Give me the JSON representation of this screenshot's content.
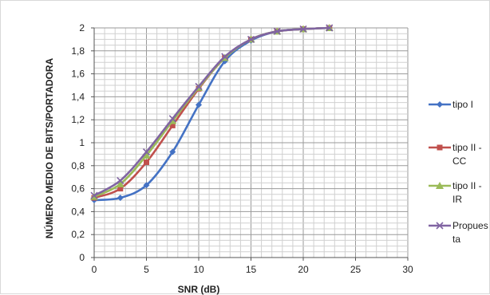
{
  "chart_data": {
    "type": "line",
    "title": "",
    "xlabel": "SNR (dB)",
    "ylabel": "NÚMERO MEDIO DE BITS/PORTADORA",
    "xlim": [
      0,
      30
    ],
    "ylim": [
      0,
      2
    ],
    "xticks": [
      0,
      5,
      10,
      15,
      20,
      25,
      30
    ],
    "yticks": [
      0,
      0.2,
      0.4,
      0.6,
      0.8,
      1,
      1.2,
      1.4,
      1.6,
      1.8,
      2
    ],
    "ytick_labels": [
      "0",
      "0,2",
      "0,4",
      "0,6",
      "0,8",
      "1",
      "1,2",
      "1,4",
      "1,6",
      "1,8",
      "2"
    ],
    "grid": true,
    "legend_position": "right",
    "series": [
      {
        "name_lines": [
          "tipo I"
        ],
        "color": "#4472C4",
        "marker": "diamond",
        "x": [
          0,
          2.5,
          5,
          7.5,
          10,
          12.5,
          15,
          17.5,
          20,
          22.5
        ],
        "y": [
          0.5,
          0.52,
          0.63,
          0.92,
          1.33,
          1.71,
          1.89,
          1.97,
          1.99,
          2.0
        ]
      },
      {
        "name_lines": [
          "tipo II -",
          "CC"
        ],
        "color": "#C0504D",
        "marker": "square",
        "x": [
          0,
          2.5,
          5,
          7.5,
          10,
          12.5,
          15,
          17.5,
          20,
          22.5
        ],
        "y": [
          0.52,
          0.6,
          0.83,
          1.15,
          1.47,
          1.74,
          1.9,
          1.97,
          1.99,
          2.0
        ]
      },
      {
        "name_lines": [
          "tipo II -",
          "IR"
        ],
        "color": "#9BBB59",
        "marker": "triangle",
        "x": [
          0,
          2.5,
          5,
          7.5,
          10,
          12.5,
          15,
          17.5,
          20,
          22.5
        ],
        "y": [
          0.53,
          0.64,
          0.89,
          1.19,
          1.48,
          1.74,
          1.9,
          1.97,
          1.99,
          2.0
        ]
      },
      {
        "name_lines": [
          "Propues",
          "ta"
        ],
        "color": "#8064A2",
        "marker": "x",
        "x": [
          0,
          2.5,
          5,
          7.5,
          10,
          12.5,
          15,
          17.5,
          20,
          22.5
        ],
        "y": [
          0.54,
          0.67,
          0.92,
          1.21,
          1.49,
          1.75,
          1.9,
          1.97,
          1.99,
          2.0
        ]
      }
    ]
  }
}
